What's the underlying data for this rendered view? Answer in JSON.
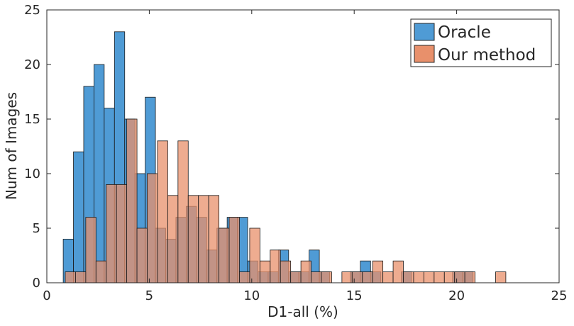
{
  "chart_data": {
    "type": "bar",
    "subtype": "overlapping-histogram",
    "title": "",
    "xlabel": "D1-all (%)",
    "ylabel": "Num of Images",
    "xlim": [
      0,
      25
    ],
    "ylim": [
      0,
      25
    ],
    "xticks": [
      0,
      5,
      10,
      15,
      20,
      25
    ],
    "yticks": [
      0,
      5,
      10,
      15,
      20,
      25
    ],
    "xtick_labels": [
      "0",
      "5",
      "10",
      "15",
      "20",
      "25"
    ],
    "ytick_labels": [
      "0",
      "5",
      "10",
      "15",
      "20",
      "25"
    ],
    "grid": false,
    "legend_position": "top-right",
    "series": [
      {
        "name": "Oracle",
        "color": "#4f9bd5",
        "bins": [
          {
            "x0": 0.8,
            "x1": 1.3,
            "count": 4
          },
          {
            "x0": 1.3,
            "x1": 1.8,
            "count": 12
          },
          {
            "x0": 1.8,
            "x1": 2.3,
            "count": 18
          },
          {
            "x0": 2.3,
            "x1": 2.8,
            "count": 20
          },
          {
            "x0": 2.8,
            "x1": 3.3,
            "count": 16
          },
          {
            "x0": 3.3,
            "x1": 3.8,
            "count": 23
          },
          {
            "x0": 3.8,
            "x1": 4.3,
            "count": 15
          },
          {
            "x0": 4.3,
            "x1": 4.8,
            "count": 10
          },
          {
            "x0": 4.8,
            "x1": 5.3,
            "count": 17
          },
          {
            "x0": 5.3,
            "x1": 5.8,
            "count": 5
          },
          {
            "x0": 5.8,
            "x1": 6.3,
            "count": 4
          },
          {
            "x0": 6.3,
            "x1": 6.8,
            "count": 6
          },
          {
            "x0": 6.8,
            "x1": 7.3,
            "count": 7
          },
          {
            "x0": 7.3,
            "x1": 7.8,
            "count": 6
          },
          {
            "x0": 7.8,
            "x1": 8.3,
            "count": 3
          },
          {
            "x0": 8.3,
            "x1": 8.8,
            "count": 5
          },
          {
            "x0": 8.8,
            "x1": 9.3,
            "count": 6
          },
          {
            "x0": 9.3,
            "x1": 9.8,
            "count": 6
          },
          {
            "x0": 9.8,
            "x1": 10.3,
            "count": 2
          },
          {
            "x0": 10.3,
            "x1": 10.8,
            "count": 1
          },
          {
            "x0": 10.8,
            "x1": 11.3,
            "count": 1
          },
          {
            "x0": 11.3,
            "x1": 11.8,
            "count": 3
          },
          {
            "x0": 11.8,
            "x1": 12.3,
            "count": 1
          },
          {
            "x0": 12.3,
            "x1": 12.8,
            "count": 1
          },
          {
            "x0": 12.8,
            "x1": 13.3,
            "count": 3
          },
          {
            "x0": 13.3,
            "x1": 13.8,
            "count": 1
          },
          {
            "x0": 14.8,
            "x1": 15.3,
            "count": 1
          },
          {
            "x0": 15.3,
            "x1": 15.8,
            "count": 2
          },
          {
            "x0": 15.8,
            "x1": 16.3,
            "count": 1
          },
          {
            "x0": 17.3,
            "x1": 17.8,
            "count": 1
          },
          {
            "x0": 19.8,
            "x1": 20.3,
            "count": 1
          },
          {
            "x0": 20.3,
            "x1": 20.8,
            "count": 1
          }
        ]
      },
      {
        "name": "Our method",
        "color": "#e8906b",
        "bins": [
          {
            "x0": 0.9,
            "x1": 1.4,
            "count": 1
          },
          {
            "x0": 1.4,
            "x1": 1.9,
            "count": 1
          },
          {
            "x0": 1.9,
            "x1": 2.4,
            "count": 6
          },
          {
            "x0": 2.4,
            "x1": 2.9,
            "count": 2
          },
          {
            "x0": 2.9,
            "x1": 3.4,
            "count": 9
          },
          {
            "x0": 3.4,
            "x1": 3.9,
            "count": 9
          },
          {
            "x0": 3.9,
            "x1": 4.4,
            "count": 15
          },
          {
            "x0": 4.4,
            "x1": 4.9,
            "count": 5
          },
          {
            "x0": 4.9,
            "x1": 5.4,
            "count": 10
          },
          {
            "x0": 5.4,
            "x1": 5.9,
            "count": 13
          },
          {
            "x0": 5.9,
            "x1": 6.4,
            "count": 8
          },
          {
            "x0": 6.4,
            "x1": 6.9,
            "count": 13
          },
          {
            "x0": 6.9,
            "x1": 7.4,
            "count": 8
          },
          {
            "x0": 7.4,
            "x1": 7.9,
            "count": 8
          },
          {
            "x0": 7.9,
            "x1": 8.4,
            "count": 8
          },
          {
            "x0": 8.4,
            "x1": 8.9,
            "count": 5
          },
          {
            "x0": 8.9,
            "x1": 9.4,
            "count": 6
          },
          {
            "x0": 9.4,
            "x1": 9.9,
            "count": 1
          },
          {
            "x0": 9.9,
            "x1": 10.4,
            "count": 5
          },
          {
            "x0": 10.4,
            "x1": 10.9,
            "count": 2
          },
          {
            "x0": 10.9,
            "x1": 11.4,
            "count": 3
          },
          {
            "x0": 11.4,
            "x1": 11.9,
            "count": 2
          },
          {
            "x0": 11.9,
            "x1": 12.4,
            "count": 1
          },
          {
            "x0": 12.4,
            "x1": 12.9,
            "count": 2
          },
          {
            "x0": 12.9,
            "x1": 13.4,
            "count": 1
          },
          {
            "x0": 13.4,
            "x1": 13.9,
            "count": 1
          },
          {
            "x0": 14.4,
            "x1": 14.9,
            "count": 1
          },
          {
            "x0": 14.9,
            "x1": 15.4,
            "count": 1
          },
          {
            "x0": 15.4,
            "x1": 15.9,
            "count": 1
          },
          {
            "x0": 15.9,
            "x1": 16.4,
            "count": 2
          },
          {
            "x0": 16.4,
            "x1": 16.9,
            "count": 1
          },
          {
            "x0": 16.9,
            "x1": 17.4,
            "count": 2
          },
          {
            "x0": 17.4,
            "x1": 17.9,
            "count": 1
          },
          {
            "x0": 17.9,
            "x1": 18.4,
            "count": 1
          },
          {
            "x0": 18.4,
            "x1": 18.9,
            "count": 1
          },
          {
            "x0": 18.9,
            "x1": 19.4,
            "count": 1
          },
          {
            "x0": 19.4,
            "x1": 19.9,
            "count": 1
          },
          {
            "x0": 19.9,
            "x1": 20.4,
            "count": 1
          },
          {
            "x0": 20.4,
            "x1": 20.9,
            "count": 1
          },
          {
            "x0": 21.9,
            "x1": 22.4,
            "count": 1
          }
        ]
      }
    ]
  }
}
